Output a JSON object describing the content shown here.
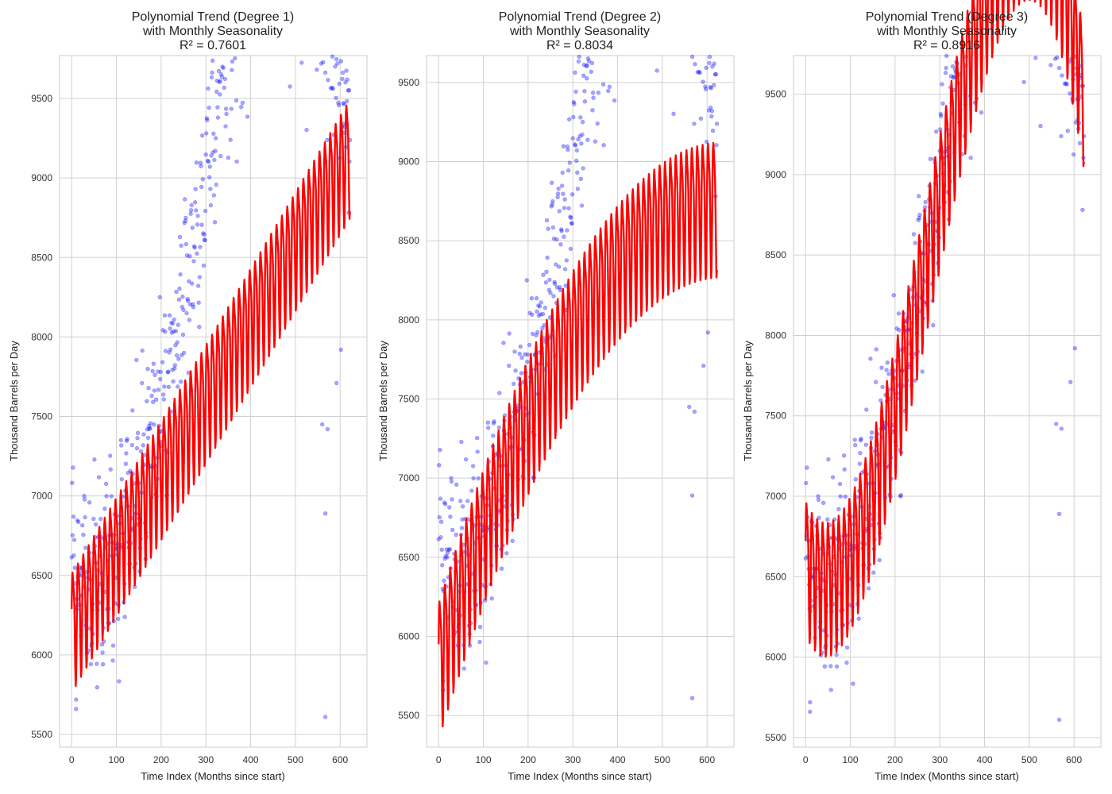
{
  "chart_data": [
    {
      "type": "scatter",
      "title_lines": [
        "Polynomial Trend (Degree 1)",
        "with Monthly Seasonality",
        "R² = 0.7601"
      ],
      "xlabel": "Time Index (Months since start)",
      "ylabel": "Thousand Barrels per Day",
      "xlim": [
        -27,
        660
      ],
      "ylim": [
        5420,
        9770
      ],
      "xticks": [
        0,
        100,
        200,
        300,
        400,
        500,
        600
      ],
      "yticks": [
        5500,
        6000,
        6500,
        7000,
        7500,
        8000,
        8500,
        9000,
        9500
      ],
      "grid": true,
      "fit": {
        "degree": 1,
        "coeffs": [
          6200,
          4.8
        ],
        "season_amp": 350
      },
      "series": [
        {
          "kind": "scatter",
          "color": "#0000ff",
          "alpha": 0.35
        },
        {
          "kind": "line",
          "color": "#ff0000"
        }
      ]
    },
    {
      "type": "scatter",
      "title_lines": [
        "Polynomial Trend (Degree 2)",
        "with Monthly Seasonality",
        "R² = 0.8034"
      ],
      "xlabel": "Time Index (Months since start)",
      "ylabel": "Thousand Barrels per Day",
      "xlim": [
        -27,
        660
      ],
      "ylim": [
        5300,
        9670
      ],
      "xticks": [
        0,
        100,
        200,
        300,
        400,
        500,
        600
      ],
      "yticks": [
        5500,
        6000,
        6500,
        7000,
        7500,
        8000,
        8500,
        9000,
        9500
      ],
      "grid": true,
      "fit": {
        "degree": 2,
        "coeffs": [
          5850,
          9.17,
          -0.0072
        ],
        "season_amp": 400
      },
      "series": [
        {
          "kind": "scatter",
          "color": "#0000ff",
          "alpha": 0.35
        },
        {
          "kind": "line",
          "color": "#ff0000"
        }
      ]
    },
    {
      "type": "scatter",
      "title_lines": [
        "Polynomial Trend (Degree 3)",
        "with Monthly Seasonality",
        "R² = 0.8916"
      ],
      "xlabel": "Time Index (Months since start)",
      "ylabel": "Thousand Barrels per Day",
      "xlim": [
        -27,
        660
      ],
      "ylim": [
        5440,
        9740
      ],
      "xticks": [
        0,
        100,
        200,
        300,
        400,
        500,
        600
      ],
      "yticks": [
        5500,
        6000,
        6500,
        7000,
        7500,
        8000,
        8500,
        9000,
        9500
      ],
      "grid": true,
      "fit": {
        "degree": 3,
        "coeffs": [
          6624,
          -6.0,
          0.0715,
          -8.74e-05
        ],
        "season_amp": 390
      },
      "series": [
        {
          "kind": "scatter",
          "color": "#0000ff",
          "alpha": 0.35
        },
        {
          "kind": "line",
          "color": "#ff0000"
        }
      ]
    }
  ]
}
